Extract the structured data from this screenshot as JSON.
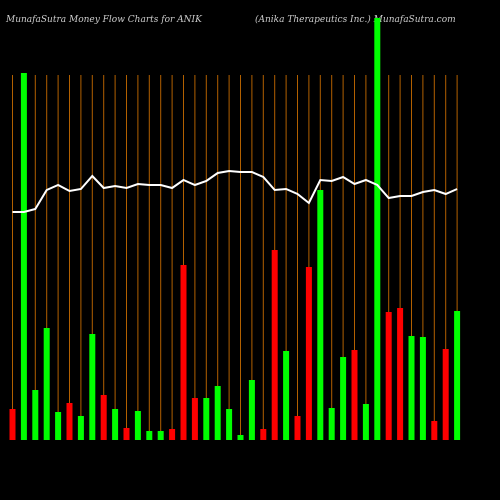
{
  "chart_data": {
    "type": "bar",
    "title": "MunafaSutra  Money Flow  Charts for ANIK",
    "subtitle": "(Anika Therapeutics Inc.) MunafaSutra.com",
    "categories": [
      null,
      null,
      null,
      null,
      null,
      null,
      null,
      null,
      null,
      null,
      null,
      null,
      null,
      null,
      null,
      null,
      null,
      null,
      null,
      null,
      null,
      null,
      null,
      null,
      null,
      null,
      null,
      null,
      null,
      null,
      null,
      null,
      null,
      null,
      null,
      null,
      null,
      null,
      null,
      null
    ],
    "values": [
      31,
      367,
      50,
      112,
      28,
      37,
      24,
      106,
      45,
      31,
      12,
      29,
      9,
      9,
      11,
      175,
      42,
      42,
      54,
      31,
      5,
      60,
      11,
      190,
      89,
      24,
      173,
      250,
      32,
      83,
      90,
      36,
      422,
      128,
      132,
      104,
      103,
      19,
      91,
      129
    ],
    "colors": [
      "#ff0000",
      "#00ff00",
      "#00ff00",
      "#00ff00",
      "#00ff00",
      "#ff0000",
      "#00ff00",
      "#00ff00",
      "#ff0000",
      "#00ff00",
      "#ff0000",
      "#00ff00",
      "#00ff00",
      "#00ff00",
      "#ff0000",
      "#ff0000",
      "#ff0000",
      "#00ff00",
      "#00ff00",
      "#00ff00",
      "#00ff00",
      "#00ff00",
      "#ff0000",
      "#ff0000",
      "#00ff00",
      "#ff0000",
      "#ff0000",
      "#00ff00",
      "#00ff00",
      "#00ff00",
      "#ff0000",
      "#00ff00",
      "#00ff00",
      "#ff0000",
      "#ff0000",
      "#00ff00",
      "#00ff00",
      "#ff0000",
      "#ff0000",
      "#00ff00"
    ],
    "line_values": [
      228,
      228,
      231,
      250,
      255,
      249,
      251,
      264,
      252,
      254,
      252,
      256,
      255,
      255,
      252,
      260,
      255,
      259,
      267,
      269,
      268,
      268,
      263,
      250,
      251,
      246,
      237,
      260,
      259,
      263,
      256,
      260,
      255,
      242,
      244,
      244,
      248,
      250,
      246,
      251
    ],
    "line_color": "#ffffff",
    "ylim": [
      0,
      425
    ]
  }
}
